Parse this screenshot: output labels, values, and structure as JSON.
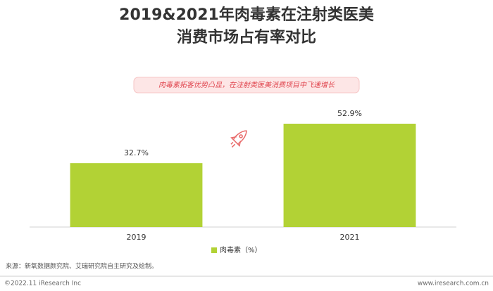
{
  "chart_data": {
    "type": "bar",
    "title": [
      "2019&2021年肉毒素在注射类医美",
      "消费市场占有率对比"
    ],
    "subtitle": "肉毒素拓客优势凸显，在注射类医美消费项目中飞速增长",
    "categories": [
      "2019",
      "2021"
    ],
    "series": [
      {
        "name": "肉毒素（%）",
        "color": "#b2d235",
        "values": [
          32.7,
          52.9
        ],
        "value_labels": [
          "32.7%",
          "52.9%"
        ]
      }
    ],
    "source": "来源：新氧数据颜究院、艾瑞研究院自主研究及绘制。"
  },
  "footer": {
    "copyright": "©2022.11 iResearch Inc",
    "website": "www.iresearch.com.cn"
  }
}
